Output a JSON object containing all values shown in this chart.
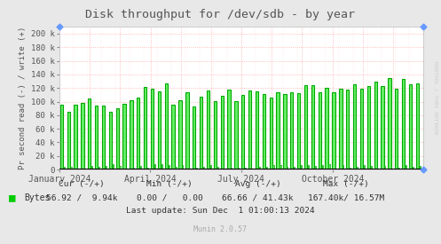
{
  "title": "Disk throughput for /dev/sdb - by year",
  "ylabel": "Pr second read (-) / write (+)",
  "background_color": "#e8e8e8",
  "plot_bg_color": "#ffffff",
  "grid_color_h": "#ff9999",
  "grid_color_v": "#ff9999",
  "bar_edge_color": "#00bb00",
  "bar_face_color": "#aaffaa",
  "ylim": [
    0,
    210000
  ],
  "yticks": [
    0,
    20000,
    40000,
    60000,
    80000,
    100000,
    120000,
    140000,
    160000,
    180000,
    200000
  ],
  "ytick_labels": [
    "0",
    "20 k",
    "40 k",
    "60 k",
    "80 k",
    "100 k",
    "120 k",
    "140 k",
    "160 k",
    "180 k",
    "200 k"
  ],
  "legend_label": "Bytes",
  "legend_color": "#00cc00",
  "cur_label": "Cur (-/+)",
  "min_label": "Min (-/+)",
  "avg_label": "Avg (-/+)",
  "max_label": "Max (-/+)",
  "cur_val": "56.92 /  9.94k",
  "min_val": "0.00 /   0.00",
  "avg_val": "66.66 / 41.43k",
  "max_val": "167.40k/ 16.57M",
  "last_update": "Last update: Sun Dec  1 01:00:13 2024",
  "munin_version": "Munin 2.0.57",
  "rrdtool_label": "RRDTOOL / TOBI OETIKER",
  "x_tick_labels": [
    "January 2024",
    "April 2024",
    "July 2024",
    "October 2024"
  ],
  "title_color": "#555555",
  "tick_color": "#555555",
  "axis_label_color": "#555555"
}
